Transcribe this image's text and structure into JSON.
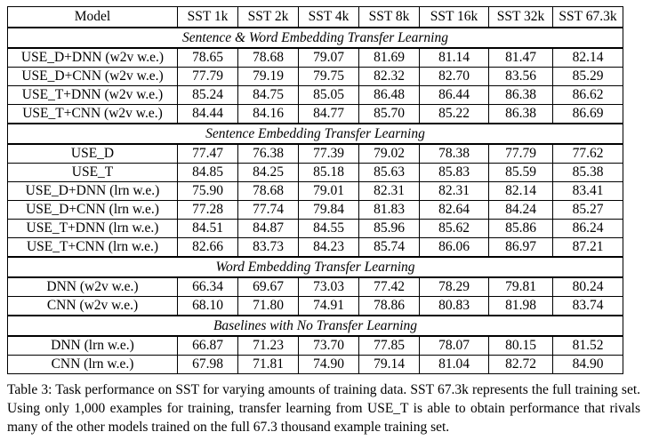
{
  "table": {
    "headers": [
      "Model",
      "SST 1k",
      "SST 2k",
      "SST 4k",
      "SST 8k",
      "SST 16k",
      "SST 32k",
      "SST 67.3k"
    ],
    "sections": [
      {
        "title": "Sentence & Word Embedding Transfer Learning",
        "rows": [
          [
            "USE_D+DNN (w2v w.e.)",
            "78.65",
            "78.68",
            "79.07",
            "81.69",
            "81.14",
            "81.47",
            "82.14"
          ],
          [
            "USE_D+CNN (w2v w.e.)",
            "77.79",
            "79.19",
            "79.75",
            "82.32",
            "82.70",
            "83.56",
            "85.29"
          ],
          [
            "USE_T+DNN (w2v w.e.)",
            "85.24",
            "84.75",
            "85.05",
            "86.48",
            "86.44",
            "86.38",
            "86.62"
          ],
          [
            "USE_T+CNN (w2v w.e.)",
            "84.44",
            "84.16",
            "84.77",
            "85.70",
            "85.22",
            "86.38",
            "86.69"
          ]
        ]
      },
      {
        "title": "Sentence Embedding Transfer Learning",
        "rows": [
          [
            "USE_D",
            "77.47",
            "76.38",
            "77.39",
            "79.02",
            "78.38",
            "77.79",
            "77.62"
          ],
          [
            "USE_T",
            "84.85",
            "84.25",
            "85.18",
            "85.63",
            "85.83",
            "85.59",
            "85.38"
          ],
          [
            "USE_D+DNN (lrn w.e.)",
            "75.90",
            "78.68",
            "79.01",
            "82.31",
            "82.31",
            "82.14",
            "83.41"
          ],
          [
            "USE_D+CNN (lrn w.e.)",
            "77.28",
            "77.74",
            "79.84",
            "81.83",
            "82.64",
            "84.24",
            "85.27"
          ],
          [
            "USE_T+DNN (lrn w.e.)",
            "84.51",
            "84.87",
            "84.55",
            "85.96",
            "85.62",
            "85.86",
            "86.24"
          ],
          [
            "USE_T+CNN (lrn w.e.)",
            "82.66",
            "83.73",
            "84.23",
            "85.74",
            "86.06",
            "86.97",
            "87.21"
          ]
        ]
      },
      {
        "title": "Word Embedding Transfer Learning",
        "rows": [
          [
            "DNN (w2v w.e.)",
            "66.34",
            "69.67",
            "73.03",
            "77.42",
            "78.29",
            "79.81",
            "80.24"
          ],
          [
            "CNN (w2v w.e.)",
            "68.10",
            "71.80",
            "74.91",
            "78.86",
            "80.83",
            "81.98",
            "83.74"
          ]
        ]
      },
      {
        "title": "Baselines with No Transfer Learning",
        "rows": [
          [
            "DNN (lrn w.e.)",
            "66.87",
            "71.23",
            "73.70",
            "77.85",
            "78.07",
            "80.15",
            "81.52"
          ],
          [
            "CNN (lrn w.e.)",
            "67.98",
            "71.81",
            "74.90",
            "79.14",
            "81.04",
            "82.72",
            "84.90"
          ]
        ]
      }
    ]
  },
  "caption": "Table 3: Task performance on SST for varying amounts of training data. SST 67.3k represents the full training set. Using only 1,000 examples for training, transfer learning from USE_T is able to obtain performance that rivals many of the other models trained on the full 67.3 thousand example training set."
}
